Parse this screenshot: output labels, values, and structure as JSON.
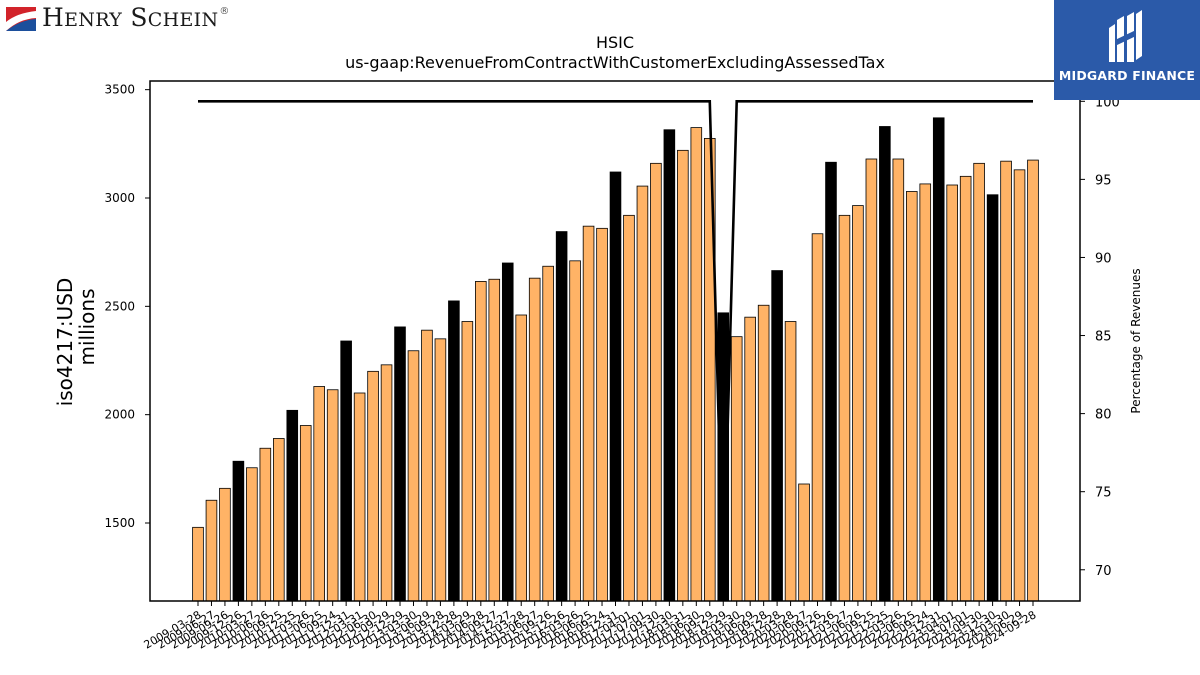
{
  "branding": {
    "left_logo_text": "Henry Schein",
    "left_logo_mark": "®",
    "right_logo_text": "MIDGARD FINANCE"
  },
  "chart_data": {
    "type": "bar",
    "title": "HSIC",
    "subtitle": "us-gaap:RevenueFromContractWithCustomerExcludingAssessedTax",
    "ylabel_lines": [
      "iso4217:USD",
      "millions"
    ],
    "y2label": "Percentage of Revenues",
    "ylim": [
      1140,
      3540
    ],
    "y2lim": [
      68.0,
      101.3
    ],
    "yticks": [
      1500,
      2000,
      2500,
      3000,
      3500
    ],
    "y2ticks": [
      70,
      75,
      80,
      85,
      90,
      95,
      100
    ],
    "categories": [
      "2009-03-28",
      "2009-06-27",
      "2009-09-26",
      "2009-12-26",
      "2010-03-27",
      "2010-06-26",
      "2010-09-25",
      "2010-12-25",
      "2011-03-26",
      "2011-06-25",
      "2011-09-24",
      "2011-12-31",
      "2012-03-31",
      "2012-06-30",
      "2012-09-29",
      "2012-12-29",
      "2013-03-30",
      "2013-06-29",
      "2013-09-28",
      "2013-12-28",
      "2014-03-29",
      "2014-06-28",
      "2014-09-27",
      "2014-12-27",
      "2015-03-28",
      "2015-06-27",
      "2015-09-26",
      "2015-12-26",
      "2016-03-26",
      "2016-06-25",
      "2016-09-24",
      "2016-12-31",
      "2017-04-01",
      "2017-07-01",
      "2017-09-30",
      "2017-12-30",
      "2018-03-31",
      "2018-06-30",
      "2018-09-29",
      "2018-12-29",
      "2019-03-30",
      "2019-06-29",
      "2019-09-28",
      "2019-12-28",
      "2020-03-28",
      "2020-06-27",
      "2020-09-26",
      "2020-12-26",
      "2021-03-27",
      "2021-06-26",
      "2021-09-25",
      "2021-12-25",
      "2022-03-26",
      "2022-06-25",
      "2022-09-24",
      "2022-12-31",
      "2023-04-01",
      "2023-07-01",
      "2023-09-30",
      "2023-12-30",
      "2024-03-30",
      "2024-06-29",
      "2024-09-28"
    ],
    "values": [
      1480,
      1605,
      1660,
      1785,
      1755,
      1845,
      1890,
      2020,
      1950,
      2130,
      2115,
      2340,
      2100,
      2200,
      2230,
      2405,
      2295,
      2390,
      2350,
      2525,
      2430,
      2615,
      2625,
      2700,
      2460,
      2630,
      2685,
      2845,
      2710,
      2870,
      2860,
      3120,
      2920,
      3055,
      3160,
      3315,
      3220,
      3325,
      3275,
      2470,
      2360,
      2450,
      2505,
      2665,
      2430,
      1680,
      2835,
      3165,
      2920,
      2965,
      3180,
      3330,
      3180,
      3030,
      3065,
      3370,
      3060,
      3100,
      3160,
      3015,
      3170,
      3130,
      3175
    ],
    "bar_colors": {
      "regular": "#ffb366",
      "year_end": "#000000"
    },
    "year_end_indices": [
      3,
      7,
      11,
      15,
      19,
      23,
      27,
      31,
      35,
      39,
      43,
      47,
      51,
      55,
      59
    ],
    "percentage_line": {
      "color": "#000000",
      "values": [
        100,
        100,
        100,
        100,
        100,
        100,
        100,
        100,
        100,
        100,
        100,
        100,
        100,
        100,
        100,
        100,
        100,
        100,
        100,
        100,
        100,
        100,
        100,
        100,
        100,
        100,
        100,
        100,
        100,
        100,
        100,
        100,
        100,
        100,
        100,
        100,
        100,
        100,
        100,
        69,
        100,
        100,
        100,
        100,
        100,
        100,
        100,
        100,
        100,
        100,
        100,
        100,
        100,
        100,
        100,
        100,
        100,
        100,
        100,
        100,
        100,
        100,
        100
      ]
    },
    "grid": false
  }
}
